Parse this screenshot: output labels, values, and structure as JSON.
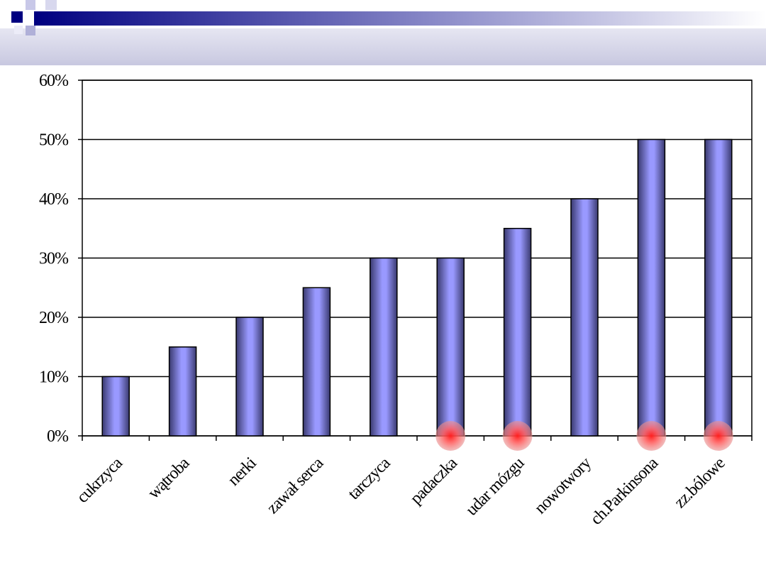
{
  "chart_data": {
    "type": "bar",
    "categories": [
      "cukrzyca",
      "wątroba",
      "nerki",
      "zawał serca",
      "tarczyca",
      "padaczka",
      "udar mózgu",
      "nowotwory",
      "ch.Parkinsona",
      "zz.bólowe"
    ],
    "values": [
      10,
      15,
      20,
      25,
      30,
      30,
      35,
      40,
      50,
      50
    ],
    "highlighted": [
      false,
      false,
      false,
      false,
      false,
      true,
      true,
      false,
      true,
      true
    ],
    "color": "#9999ff",
    "ylim": [
      0,
      60
    ],
    "yticks": [
      {
        "value": 0,
        "label": "0%"
      },
      {
        "value": 10,
        "label": "10%"
      },
      {
        "value": 20,
        "label": "20%"
      },
      {
        "value": 30,
        "label": "30%"
      },
      {
        "value": 40,
        "label": "40%"
      },
      {
        "value": 50,
        "label": "50%"
      },
      {
        "value": 60,
        "label": "60%"
      }
    ],
    "grid": true
  }
}
